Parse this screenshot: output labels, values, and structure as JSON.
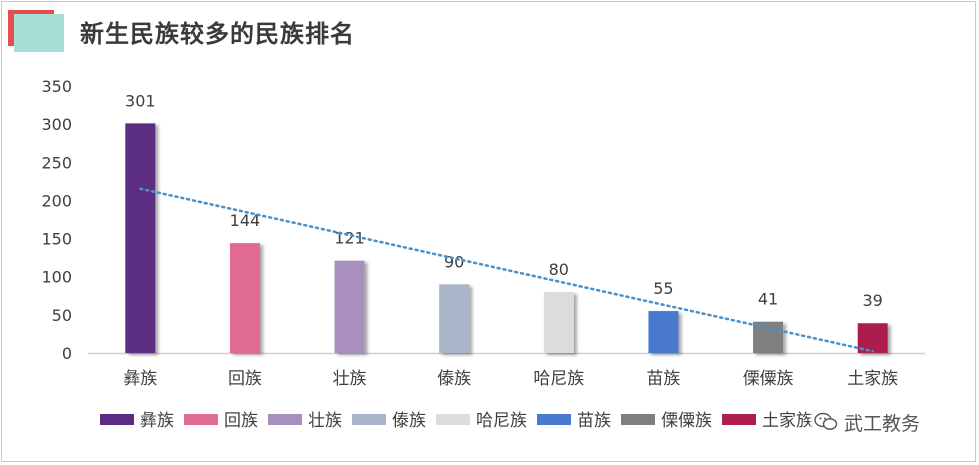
{
  "title": "新生民族较多的民族排名",
  "colors": {
    "deco_red": "#e84d4d",
    "deco_teal": "#a7ded8",
    "trend": "#4a90c8",
    "axis": "#d0d0d0",
    "text": "#404040"
  },
  "chart_data": {
    "type": "bar",
    "categories": [
      "彝族",
      "回族",
      "壮族",
      "傣族",
      "哈尼族",
      "苗族",
      "傈僳族",
      "土家族"
    ],
    "values": [
      301,
      144,
      121,
      90,
      80,
      55,
      41,
      39
    ],
    "colors": [
      "#5b2d82",
      "#e06b93",
      "#a98fbd",
      "#a9b5c8",
      "#dcdcdc",
      "#4a79cf",
      "#7f7f7f",
      "#ad1f4f"
    ],
    "ylim": [
      0,
      350
    ],
    "yticks": [
      0,
      50,
      100,
      150,
      200,
      250,
      300,
      350
    ],
    "trendline": "linear",
    "data_labels": true,
    "legend_position": "bottom"
  },
  "watermark": {
    "text": "武工教务",
    "icon": "wechat-icon"
  }
}
